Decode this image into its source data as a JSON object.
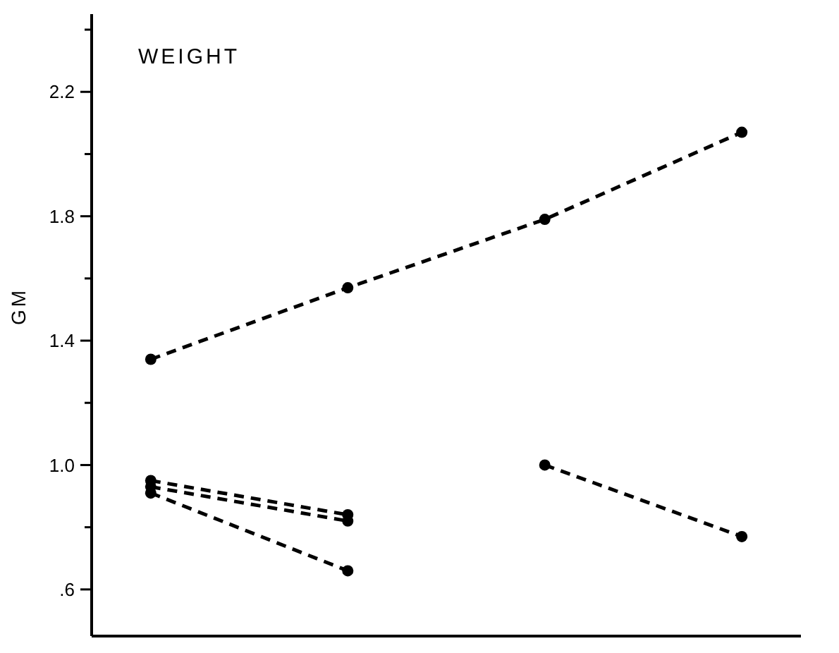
{
  "chart_data": {
    "type": "line",
    "title": "WEIGHT",
    "ylabel": "GM",
    "categories": [
      null,
      null,
      null,
      null
    ],
    "series": [
      {
        "color": "#000000",
        "values": [
          1.34,
          1.57,
          1.79,
          2.07
        ]
      },
      {
        "color": "#000000",
        "values": [
          0.95,
          0.84,
          null,
          null
        ]
      },
      {
        "color": "#000000",
        "values": [
          0.93,
          0.82,
          null,
          null
        ]
      },
      {
        "color": "#000000",
        "values": [
          0.91,
          0.66,
          null,
          null
        ]
      },
      {
        "color": "#000000",
        "values": [
          null,
          null,
          1.0,
          0.77
        ]
      }
    ],
    "ylim": [
      0.45,
      2.45
    ],
    "yticks": [
      {
        "value": 0.6,
        "label": ".6"
      },
      {
        "value": 0.8,
        "label": null
      },
      {
        "value": 1.0,
        "label": "1.0"
      },
      {
        "value": 1.2,
        "label": null
      },
      {
        "value": 1.4,
        "label": "1.4"
      },
      {
        "value": 1.6,
        "label": null
      },
      {
        "value": 1.8,
        "label": "1.8"
      },
      {
        "value": 2.0,
        "label": null
      },
      {
        "value": 2.2,
        "label": "2.2"
      },
      {
        "value": 2.4,
        "label": null
      }
    ],
    "grid": false,
    "marker": "circle",
    "line_style": "dashed",
    "tick_labels": "y"
  }
}
